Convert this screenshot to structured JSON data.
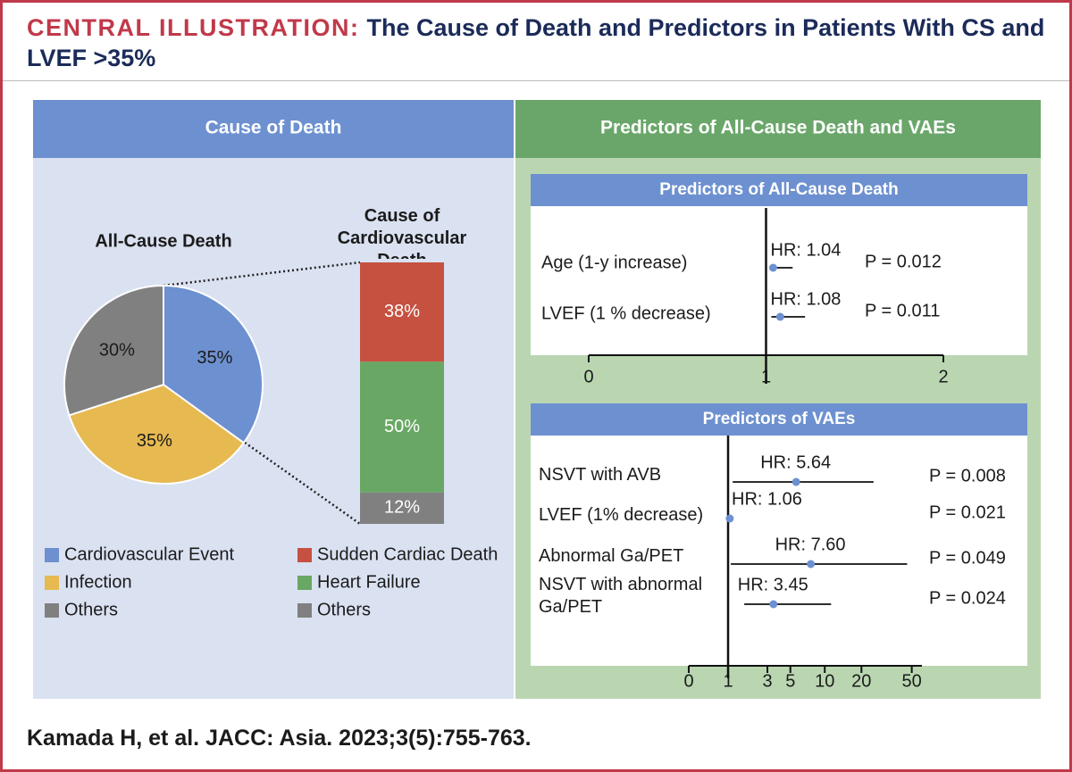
{
  "header": {
    "label": "CENTRAL ILLUSTRATION:",
    "title": "The Cause of Death and Predictors in Patients With CS and LVEF >35%"
  },
  "panels": {
    "left": "Cause of Death",
    "right": "Predictors of All-Cause Death and VAEs"
  },
  "citation": "Kamada H, et al. JACC: Asia. 2023;3(5):755-763.",
  "chart_data": [
    {
      "type": "pie",
      "title": "All-Cause Death",
      "categories": [
        "Cardiovascular Event",
        "Infection",
        "Others"
      ],
      "values": [
        35,
        35,
        30
      ],
      "value_labels": [
        "35%",
        "35%",
        "30%"
      ],
      "colors": [
        "#6d90d0",
        "#e7b951",
        "#808080"
      ]
    },
    {
      "type": "stacked_bar",
      "title": "Cause of Cardiovascular Death",
      "ylim": [
        0,
        100
      ],
      "series": [
        {
          "name": "Sudden Cardiac Death",
          "color": "#c65141",
          "values": [
            38
          ],
          "value_labels": [
            "38%"
          ]
        },
        {
          "name": "Heart Failure",
          "color": "#69a764",
          "values": [
            50
          ],
          "value_labels": [
            "50%"
          ]
        },
        {
          "name": "Others",
          "color": "#808080",
          "values": [
            12
          ],
          "value_labels": [
            "12%"
          ]
        }
      ]
    },
    {
      "type": "forest",
      "title": "Predictors of All-Cause Death",
      "categories": [
        "Age (1-y increase)",
        "LVEF (1 % decrease)"
      ],
      "values": [
        1.04,
        1.08
      ],
      "value_labels": [
        "HR: 1.04",
        "HR: 1.08"
      ],
      "lower": [
        1.03,
        1.03
      ],
      "upper": [
        1.15,
        1.22
      ],
      "p_labels": [
        "P = 0.012",
        "P = 0.011"
      ],
      "xlim": [
        0,
        2
      ],
      "xticks": [
        0,
        1,
        2
      ],
      "scale": "linear"
    },
    {
      "type": "forest",
      "title": "Predictors of VAEs",
      "categories": [
        "NSVT with AVB",
        "LVEF (1% decrease)",
        "Abnormal Ga/PET",
        "NSVT with abnormal Ga/PET"
      ],
      "values": [
        5.64,
        1.06,
        7.6,
        3.45
      ],
      "value_labels": [
        "HR: 5.64",
        "HR: 1.06",
        "HR: 7.60",
        "HR: 3.45"
      ],
      "lower": [
        1.17,
        1.02,
        1.1,
        1.66
      ],
      "upper": [
        25,
        1.1,
        46,
        11.3
      ],
      "p_labels": [
        "P = 0.008",
        "P = 0.021",
        "P = 0.049",
        "P = 0.024"
      ],
      "xlim": [
        0,
        60
      ],
      "xticks": [
        0,
        1,
        3,
        5,
        10,
        20,
        50
      ],
      "scale": "log1p"
    }
  ]
}
